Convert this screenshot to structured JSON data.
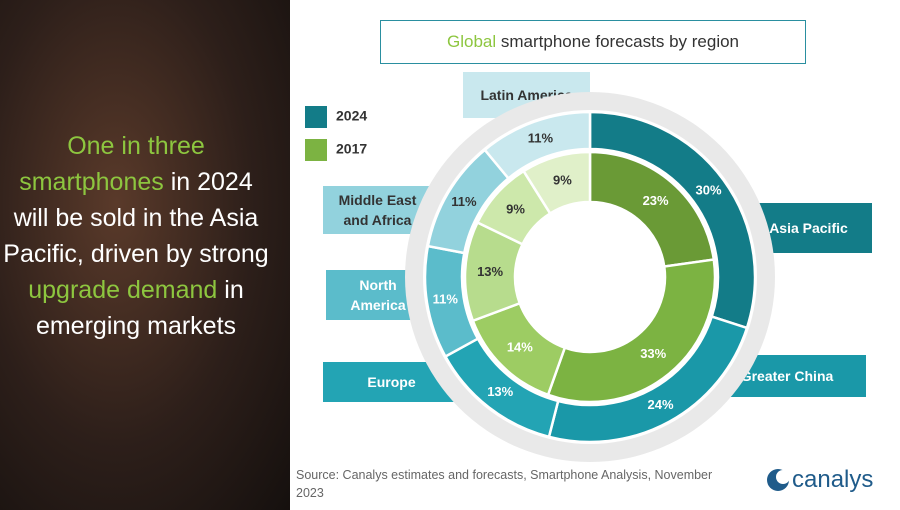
{
  "headline": [
    {
      "text": "One in three",
      "highlight": true
    },
    {
      "text": "smartphones",
      "highlight": true
    },
    {
      "text": "in 2024 will be sold in the Asia Pacific, driven by strong",
      "highlight": false
    },
    {
      "text": "upgrade",
      "highlight": true
    },
    {
      "text": "demand",
      "highlight": true
    },
    {
      "text": "in emerging markets",
      "highlight": false
    }
  ],
  "highlight_color": "#8dc63f",
  "chart_data": {
    "type": "donut",
    "title": [
      {
        "text": "Global",
        "highlight": true
      },
      {
        "text": "smartphone forecasts by region",
        "highlight": false
      }
    ],
    "categories": [
      "Asia Pacific",
      "Greater China",
      "Europe",
      "North America",
      "Middle East and Africa",
      "Latin America"
    ],
    "series": [
      {
        "name": "2024",
        "color": "#137c88",
        "colors": [
          "#137c88",
          "#1a98a8",
          "#23a4b4",
          "#5bbccb",
          "#92d2dd",
          "#c9e8ee"
        ],
        "values": [
          30,
          24,
          13,
          11,
          11,
          11
        ],
        "value_labels": [
          "30%",
          "24%",
          "13%",
          "11%",
          "11%",
          "11%"
        ]
      },
      {
        "name": "2017",
        "color": "#7cb342",
        "colors": [
          "#6a9a36",
          "#7cb342",
          "#9dcc63",
          "#b7dc8d",
          "#cde8ab",
          "#e0f0c9"
        ],
        "values": [
          23,
          33,
          14,
          13,
          9,
          9
        ],
        "value_labels": [
          "23%",
          "33%",
          "14%",
          "13%",
          "9%",
          "9%"
        ]
      }
    ],
    "legend": "top-left"
  },
  "source": "Source: Canalys estimates and forecasts, Smartphone Analysis, November 2023",
  "logo": "canalys"
}
